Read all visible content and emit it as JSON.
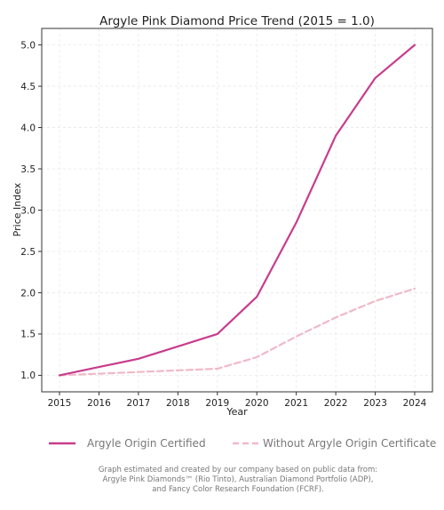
{
  "chart_data": {
    "type": "line",
    "title": "Argyle Pink Diamond Price Trend (2015 = 1.0)",
    "xlabel": "Year",
    "ylabel": "Price Index",
    "x": [
      2015,
      2016,
      2017,
      2018,
      2019,
      2020,
      2021,
      2022,
      2023,
      2024
    ],
    "xlim": [
      2014.55,
      2024.45
    ],
    "ylim": [
      0.8,
      5.2
    ],
    "yticks": [
      1.0,
      1.5,
      2.0,
      2.5,
      3.0,
      3.5,
      4.0,
      4.5,
      5.0
    ],
    "grid": true,
    "legend_position": "bottom",
    "series": [
      {
        "name": "Argyle Origin Certified",
        "values": [
          1.0,
          1.1,
          1.2,
          1.35,
          1.5,
          1.95,
          2.85,
          3.9,
          4.6,
          5.0
        ],
        "color": "#c83c8c",
        "style": "solid"
      },
      {
        "name": "Without Argyle Origin Certificate",
        "values": [
          1.0,
          1.02,
          1.04,
          1.06,
          1.08,
          1.22,
          1.47,
          1.7,
          1.9,
          2.05
        ],
        "color": "#f0b9c8",
        "style": "dashed"
      }
    ]
  },
  "footnote": [
    "Graph estimated and created by our company based on public data from:",
    "Argyle Pink Diamonds™ (Rio Tinto), Australian Diamond Portfolio (ADP),",
    "and Fancy Color Research Foundation (FCRF)."
  ]
}
